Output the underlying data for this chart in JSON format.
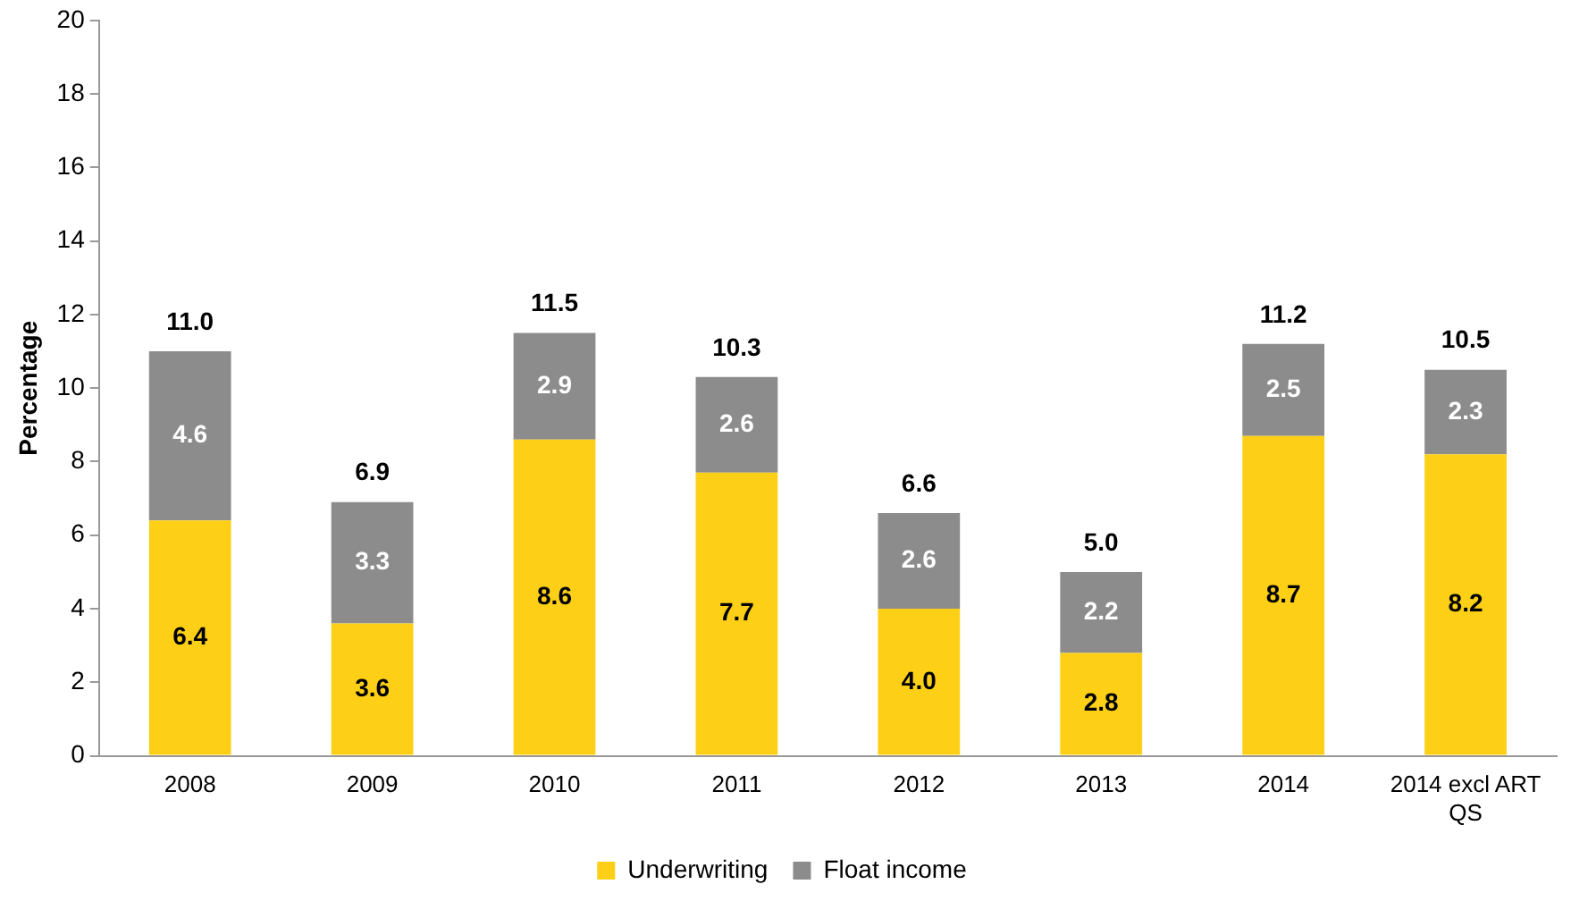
{
  "chart_data": {
    "type": "bar",
    "stacked": true,
    "ylabel": "Percentage",
    "categories": [
      "2008",
      "2009",
      "2010",
      "2011",
      "2012",
      "2013",
      "2014",
      "2014 excl ART QS"
    ],
    "series": [
      {
        "name": "Underwriting",
        "color": "#fdd017",
        "values": [
          6.4,
          3.6,
          8.6,
          7.7,
          4.0,
          2.8,
          8.7,
          8.2
        ],
        "value_labels": [
          "6.4",
          "3.6",
          "8.6",
          "7.7",
          "4.0",
          "2.8",
          "8.7",
          "8.2"
        ]
      },
      {
        "name": "Float income",
        "color": "#8c8c8c",
        "values": [
          4.6,
          3.3,
          2.9,
          2.6,
          2.6,
          2.2,
          2.5,
          2.3
        ],
        "value_labels": [
          "4.6",
          "3.3",
          "2.9",
          "2.6",
          "2.6",
          "2.2",
          "2.5",
          "2.3"
        ]
      }
    ],
    "totals": [
      "11.0",
      "6.9",
      "11.5",
      "10.3",
      "6.6",
      "5.0",
      "11.2",
      "10.5"
    ],
    "ylim": [
      0,
      20
    ],
    "yticks": [
      0,
      2,
      4,
      6,
      8,
      10,
      12,
      14,
      16,
      18,
      20
    ],
    "grid": false,
    "legend": "bottom"
  }
}
